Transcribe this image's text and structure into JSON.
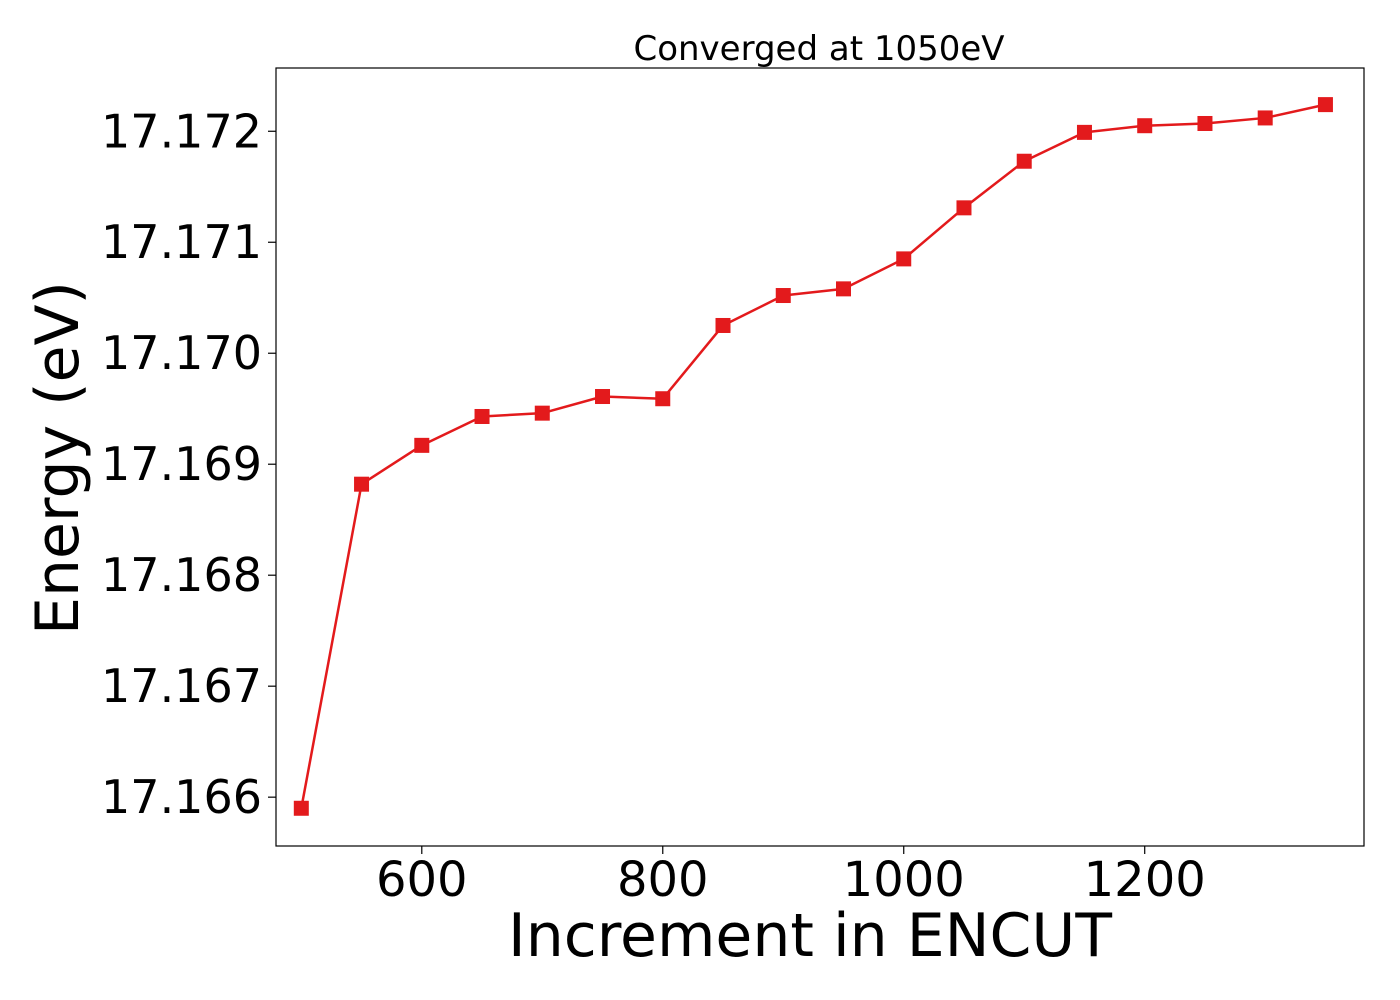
{
  "chart_data": {
    "type": "line",
    "title": "Converged at 1050eV",
    "xlabel": "Increment in ENCUT",
    "ylabel": "Energy (eV)",
    "xlim": [
      479,
      1382
    ],
    "ylim": [
      17.16556,
      17.17257
    ],
    "x_ticks": [
      600,
      800,
      1000,
      1200
    ],
    "y_ticks": [
      17.166,
      17.167,
      17.168,
      17.169,
      17.17,
      17.171,
      17.172
    ],
    "x_tick_labels": [
      "600",
      "800",
      "1000",
      "1200"
    ],
    "y_tick_labels": [
      "17.166",
      "17.167",
      "17.168",
      "17.169",
      "17.170",
      "17.171",
      "17.172"
    ],
    "grid": false,
    "color": "#e31a1c",
    "marker": "square",
    "series": [
      {
        "x": [
          500,
          550,
          600,
          650,
          700,
          750,
          800,
          850,
          900,
          950,
          1000,
          1050,
          1100,
          1150,
          1200,
          1250,
          1300,
          1350
        ],
        "y": [
          17.1659,
          17.16882,
          17.16917,
          17.16943,
          17.16946,
          17.16961,
          17.16959,
          17.17025,
          17.17052,
          17.17058,
          17.17085,
          17.17131,
          17.17173,
          17.17199,
          17.17205,
          17.17207,
          17.17212,
          17.17224
        ]
      }
    ]
  }
}
